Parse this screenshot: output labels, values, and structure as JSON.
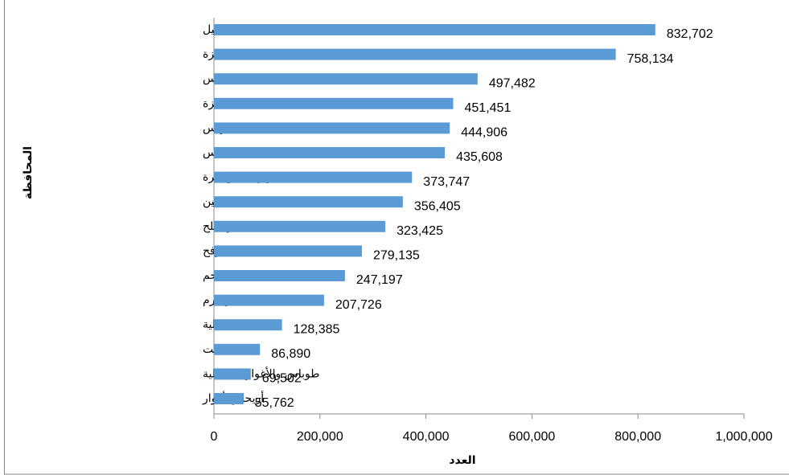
{
  "chart_data": {
    "type": "barh",
    "categories": [
      "الخليل",
      "غزة",
      "القدس",
      "شمال غزة",
      "خانيونس",
      "نابلس",
      "رام الله والبيرة",
      "جنين",
      "دير البلح",
      "رفح",
      "بيت لحم",
      "طولكرم",
      "قلقيلية",
      "سلفيت",
      "طوباس والأغوار الشمالية",
      "أريحا والأغوار"
    ],
    "values": [
      832702,
      758134,
      497482,
      451451,
      444906,
      435608,
      373747,
      356405,
      323425,
      279135,
      247197,
      207726,
      128385,
      86890,
      69502,
      55762
    ],
    "value_labels": [
      "832,702",
      "758,134",
      "497,482",
      "451,451",
      "444,906",
      "435,608",
      "373,747",
      "356,405",
      "323,425",
      "279,135",
      "247,197",
      "207,726",
      "128,385",
      "86,890",
      "69,502",
      "55,762"
    ],
    "color": "#5b9bd5",
    "xlim": [
      0,
      1000000
    ],
    "xticks": [
      0,
      {
        "value": 200000,
        "label": "200,000"
      },
      {
        "value": 400000,
        "label": "400,000"
      },
      {
        "value": 600000,
        "label": "600,000"
      },
      {
        "value": 800000,
        "label": "800,000"
      },
      {
        "value": 1000000,
        "label": "1,000,000"
      }
    ],
    "xlabel": "العدد",
    "ylabel": "المحافظة"
  }
}
